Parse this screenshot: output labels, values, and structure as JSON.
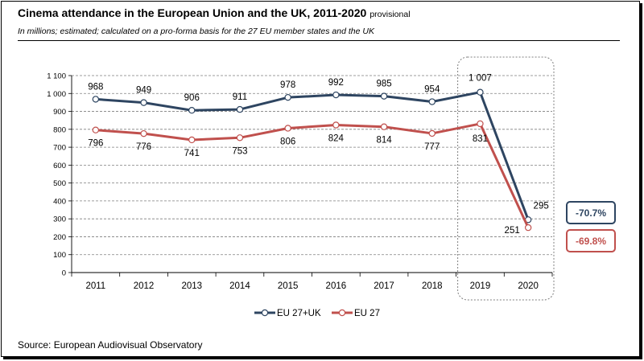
{
  "title": "Cinema attendance in the European Union and the UK, 2011-2020",
  "title_suffix": "provisional",
  "subtitle": "In millions; estimated; calculated on a pro-forma basis for the 27 EU member states and the UK",
  "source": "Source: European Audiovisual Observatory",
  "chart_data": {
    "type": "line",
    "title": "Cinema attendance in the European Union and the UK, 2011-2020",
    "xlabel": "",
    "ylabel": "",
    "ylim": [
      0,
      1100
    ],
    "yticks": [
      0,
      100,
      200,
      300,
      400,
      500,
      600,
      700,
      800,
      900,
      1000,
      1100
    ],
    "ytick_labels": [
      "0",
      "100",
      "200",
      "300",
      "400",
      "500",
      "600",
      "700",
      "800",
      "900",
      "1 000",
      "1 100"
    ],
    "grid": true,
    "legend_position": "bottom",
    "categories": [
      "2011",
      "2012",
      "2013",
      "2014",
      "2015",
      "2016",
      "2017",
      "2018",
      "2019",
      "2020"
    ],
    "series": [
      {
        "name": "EU 27+UK",
        "color": "#2e4561",
        "values": [
          968,
          949,
          906,
          911,
          978,
          992,
          985,
          954,
          1007,
          295
        ],
        "labels": [
          "968",
          "949",
          "906",
          "911",
          "978",
          "992",
          "985",
          "954",
          "1 007",
          "295"
        ],
        "change_label": "-70.7%"
      },
      {
        "name": "EU 27",
        "color": "#c0504d",
        "values": [
          796,
          776,
          741,
          753,
          806,
          824,
          814,
          777,
          831,
          251
        ],
        "labels": [
          "796",
          "776",
          "741",
          "753",
          "806",
          "824",
          "814",
          "777",
          "831",
          "251"
        ],
        "change_label": "-69.8%"
      }
    ],
    "highlight_categories": [
      "2019",
      "2020"
    ]
  }
}
